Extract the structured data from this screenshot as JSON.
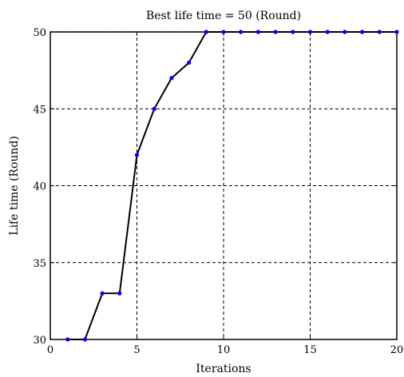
{
  "chart_data": {
    "type": "line",
    "title": "Best life time = 50 (Round)",
    "xlabel": "Iterations",
    "ylabel": "Life time (Round)",
    "xlim": [
      0,
      20
    ],
    "ylim": [
      30,
      50
    ],
    "xticks": [
      0,
      5,
      10,
      15,
      20
    ],
    "yticks": [
      30,
      35,
      40,
      45,
      50
    ],
    "grid": true,
    "series": [
      {
        "x": [
          1,
          2,
          3,
          4,
          5,
          6,
          7,
          8,
          9,
          10,
          11,
          12,
          13,
          14,
          15,
          16,
          17,
          18,
          19,
          20
        ],
        "values": [
          30,
          30,
          33,
          33,
          42,
          45,
          47,
          48,
          50,
          50,
          50,
          50,
          50,
          50,
          50,
          50,
          50,
          50,
          50,
          50
        ],
        "line_color": "#000000",
        "marker_color": "#0000ff"
      }
    ]
  }
}
